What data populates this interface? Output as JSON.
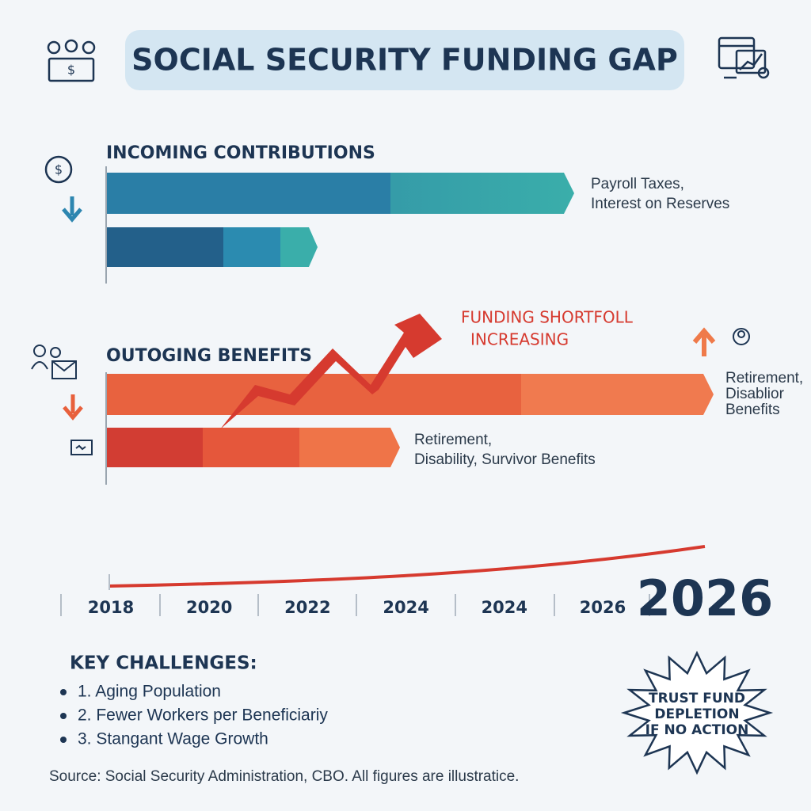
{
  "header": {
    "title": "SOCIAL SECURITY FUNDING GAP"
  },
  "incoming": {
    "heading": "INCOMING CONTRIBUTIONS",
    "label_lines": [
      "Payroll Taxes,",
      "Interest on Reserves"
    ]
  },
  "annotation": {
    "lines": [
      "FUNDING SHORTFOLL",
      "INCREASING"
    ]
  },
  "outgoing": {
    "heading": "OUTOGING BENEFITS",
    "side_label_lines": [
      "Retirement,",
      "Disablior",
      "Benefits"
    ],
    "label_lines": [
      "Retirement,",
      "Disability, Survivor Benefits"
    ]
  },
  "timeline": {
    "labels": [
      "2018",
      "2020",
      "2022",
      "2024",
      "2024",
      "2026"
    ],
    "highlight": "2026"
  },
  "challenges": {
    "heading": "KEY CHALLENGES:",
    "items": [
      "1. Aging Population",
      "2. Fewer Workers per Beneficiariy",
      "3. Stangant Wage Growth"
    ]
  },
  "badge": {
    "lines": [
      "TRUST FUND",
      "DEPLETION",
      "IF NO ACTION"
    ]
  },
  "source": "Source: Social Security Administration, CBO. All figures are illustratice."
}
